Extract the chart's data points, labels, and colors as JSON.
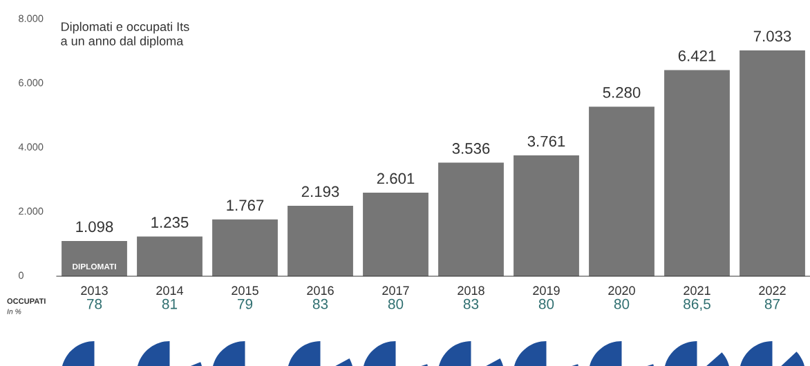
{
  "chart_data": [
    {
      "type": "bar",
      "title": "Diplomati e occupati Its\na un anno dal diploma",
      "categories": [
        "2013",
        "2014",
        "2015",
        "2016",
        "2017",
        "2018",
        "2019",
        "2020",
        "2021",
        "2022"
      ],
      "values": [
        1098,
        1235,
        1767,
        2193,
        2601,
        3536,
        3761,
        5280,
        6421,
        7033
      ],
      "value_labels": [
        "1.098",
        "1.235",
        "1.767",
        "2.193",
        "2.601",
        "3.536",
        "3.761",
        "5.280",
        "6.421",
        "7.033"
      ],
      "color": "#767676",
      "ylim": [
        0,
        8000
      ],
      "yticks": [
        0,
        {
          "value": 2000,
          "label": "2.000"
        },
        {
          "value": 4000,
          "label": "4.000"
        },
        {
          "value": 6000,
          "label": "6.000"
        },
        {
          "value": 8000,
          "label": "8.000"
        }
      ],
      "grid": false,
      "legend": false,
      "annotations": [
        "DIPLOMATI"
      ]
    },
    {
      "type": "other",
      "title": "OCCUPATI",
      "subtitle": "In %",
      "values": [
        78,
        81,
        79,
        83,
        80,
        83,
        80,
        80,
        86.5,
        87
      ],
      "value_labels": [
        "78",
        "81",
        "79",
        "83",
        "80",
        "83",
        "80",
        "80",
        "86,5",
        "87"
      ],
      "color": "#1f4f9a"
    }
  ]
}
